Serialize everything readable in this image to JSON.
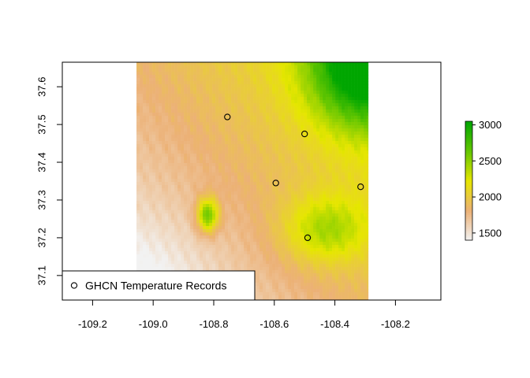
{
  "chart_data": {
    "type": "heatmap",
    "title": "",
    "xlabel": "",
    "ylabel": "",
    "xlim": [
      -109.3,
      -108.05
    ],
    "ylim": [
      37.035,
      37.665
    ],
    "xticks": [
      -109.2,
      -109.0,
      -108.8,
      -108.6,
      -108.4,
      -108.2
    ],
    "xtick_labels": [
      "-109.2",
      "-109.0",
      "-108.8",
      "-108.6",
      "-108.4",
      "-108.2"
    ],
    "yticks": [
      37.1,
      37.2,
      37.3,
      37.4,
      37.5,
      37.6
    ],
    "ytick_labels": [
      "37.1",
      "37.2",
      "37.3",
      "37.4",
      "37.5",
      "37.6"
    ],
    "raster_extent": {
      "xmin": -109.055,
      "xmax": -108.29,
      "ymin": 37.035,
      "ymax": 37.665
    },
    "elevation_range": [
      1400,
      3050
    ],
    "colorbar": {
      "ticks": [
        1500,
        2000,
        2500,
        3000
      ],
      "tick_labels": [
        "1500",
        "2000",
        "2500",
        "3000"
      ],
      "colors": [
        "#f2f2f2",
        "#ecb176",
        "#e6e600",
        "#63c600",
        "#00a600"
      ]
    },
    "stations": [
      {
        "x": -108.755,
        "y": 37.52
      },
      {
        "x": -108.5,
        "y": 37.475
      },
      {
        "x": -108.595,
        "y": 37.345
      },
      {
        "x": -108.315,
        "y": 37.335
      },
      {
        "x": -108.49,
        "y": 37.2
      }
    ],
    "legend": {
      "position": "bottom-left",
      "entries": [
        {
          "symbol": "open-circle",
          "label": "GHCN Temperature Records"
        }
      ]
    }
  }
}
